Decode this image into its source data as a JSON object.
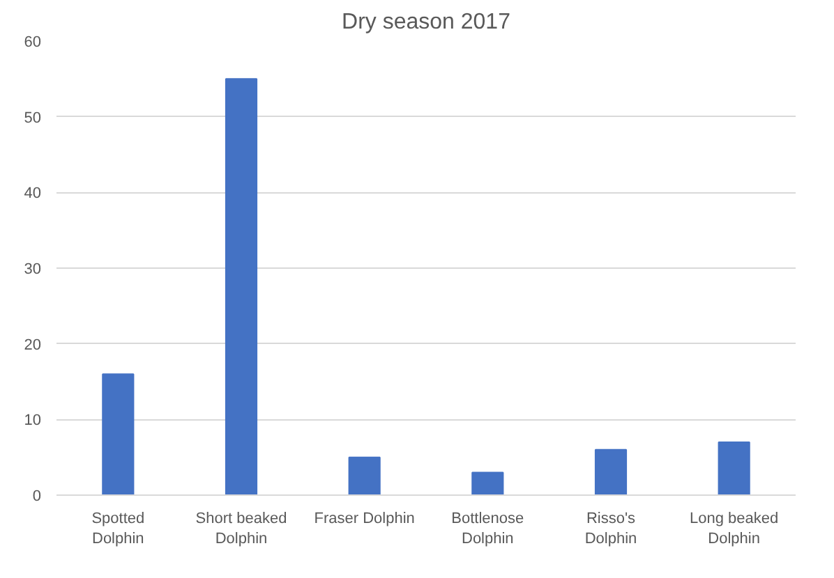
{
  "chart_data": {
    "type": "bar",
    "title": "Dry season 2017",
    "categories": [
      "Spotted Dolphin",
      "Short beaked Dolphin",
      "Fraser Dolphin",
      "Bottlenose Dolphin",
      "Risso's Dolphin",
      "Long beaked Dolphin"
    ],
    "values": [
      16,
      55,
      5,
      3,
      6,
      7
    ],
    "color": "#4472c4",
    "ylim": [
      0,
      60
    ],
    "yticks": [
      0,
      10,
      20,
      30,
      40,
      50,
      60
    ],
    "grid": "y"
  }
}
